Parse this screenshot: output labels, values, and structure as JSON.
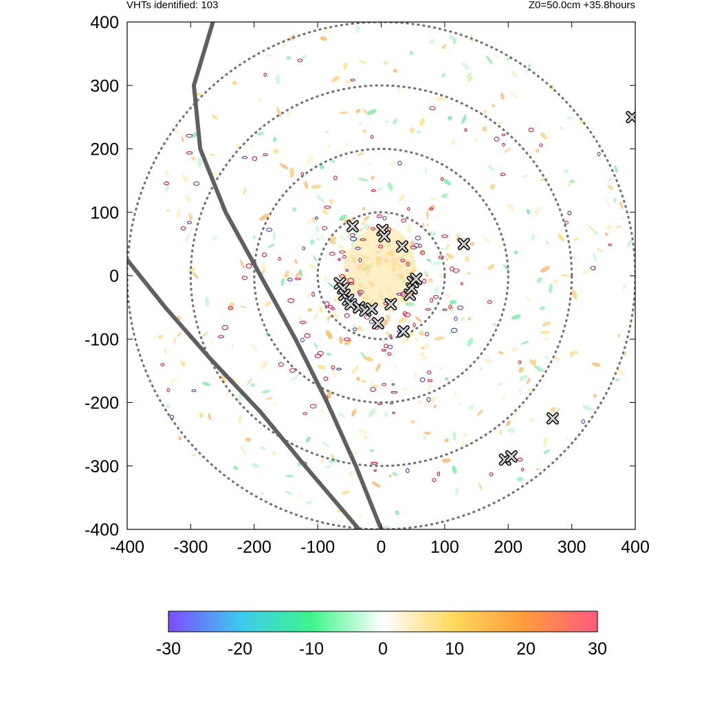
{
  "header": {
    "left_text": "VHTs identified: 103",
    "right_text": "Z0=50.0cm  +35.8hours"
  },
  "chart_data": {
    "type": "scatter",
    "title": "",
    "xlabel": "",
    "ylabel": "",
    "xlim": [
      -400,
      400
    ],
    "ylim": [
      -400,
      400
    ],
    "x_ticks": [
      "-400",
      "-300",
      "-200",
      "-100",
      "0",
      "100",
      "200",
      "300",
      "400"
    ],
    "y_ticks": [
      "400",
      "300",
      "200",
      "100",
      "0",
      "-100",
      "-200",
      "-300",
      "-400"
    ],
    "range_rings": [
      100,
      200,
      300,
      400
    ],
    "colorbar": {
      "min": -30,
      "max": 30,
      "ticks": [
        "-30",
        "-20",
        "-10",
        "0",
        "10",
        "20",
        "30"
      ],
      "colors": [
        "#7b4dff",
        "#3ec8f0",
        "#3ef58a",
        "#ffffff",
        "#ffd85a",
        "#ff9a3c",
        "#ff5a80"
      ]
    },
    "vht_markers": [
      [
        -45,
        78
      ],
      [
        2,
        72
      ],
      [
        5,
        62
      ],
      [
        33,
        46
      ],
      [
        130,
        50
      ],
      [
        -65,
        -12
      ],
      [
        -60,
        -20
      ],
      [
        -58,
        -30
      ],
      [
        -52,
        -38
      ],
      [
        -48,
        -45
      ],
      [
        -35,
        -50
      ],
      [
        -25,
        -55
      ],
      [
        -15,
        -52
      ],
      [
        -5,
        -75
      ],
      [
        15,
        -45
      ],
      [
        35,
        -88
      ],
      [
        45,
        -30
      ],
      [
        48,
        -20
      ],
      [
        50,
        -10
      ],
      [
        55,
        -5
      ],
      [
        270,
        -225
      ],
      [
        195,
        -290
      ],
      [
        205,
        -285
      ],
      [
        395,
        250
      ]
    ],
    "gray_tracks": [
      {
        "name": "",
        "points": [
          [
            -265,
            400
          ],
          [
            -295,
            300
          ],
          [
            -285,
            200
          ],
          [
            -245,
            100
          ],
          [
            -190,
            0
          ],
          [
            -135,
            -100
          ],
          [
            -85,
            -200
          ],
          [
            -40,
            -300
          ],
          [
            0,
            -400
          ]
        ]
      },
      {
        "name": "",
        "points": [
          [
            -400,
            25
          ],
          [
            -340,
            -50
          ],
          [
            -270,
            -130
          ],
          [
            -190,
            -215
          ],
          [
            -120,
            -300
          ],
          [
            -35,
            -400
          ]
        ]
      }
    ]
  }
}
